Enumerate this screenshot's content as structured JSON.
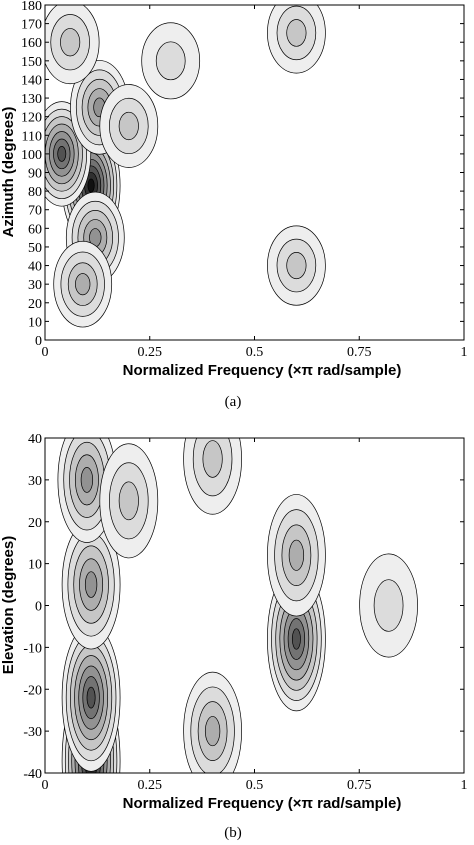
{
  "chart_data": [
    {
      "type": "heatmap",
      "subtype": "filled-contour",
      "panel_label": "(a)",
      "xlabel": "Normalized Frequency (×π rad/sample)",
      "ylabel": "Azimuth (degrees)",
      "xlim": [
        0,
        1
      ],
      "ylim": [
        0,
        180
      ],
      "xticks": [
        "0",
        "0.25",
        "0.5",
        "0.75",
        "1"
      ],
      "yticks": [
        "0",
        "10",
        "20",
        "30",
        "40",
        "50",
        "60",
        "70",
        "80",
        "90",
        "100",
        "110",
        "120",
        "130",
        "140",
        "150",
        "160",
        "170",
        "180"
      ],
      "colormap": "grayscale (white = low, black = high)",
      "grid": false,
      "peaks": [
        {
          "x": 0.11,
          "y": 83,
          "level": 1.0
        },
        {
          "x": 0.04,
          "y": 100,
          "level": 0.75
        },
        {
          "x": 0.13,
          "y": 125,
          "level": 0.55
        },
        {
          "x": 0.12,
          "y": 55,
          "level": 0.5
        },
        {
          "x": 0.09,
          "y": 30,
          "level": 0.4
        },
        {
          "x": 0.06,
          "y": 160,
          "level": 0.35
        },
        {
          "x": 0.2,
          "y": 115,
          "level": 0.35
        },
        {
          "x": 0.6,
          "y": 165,
          "level": 0.3
        },
        {
          "x": 0.6,
          "y": 40,
          "level": 0.28
        },
        {
          "x": 0.3,
          "y": 150,
          "level": 0.22
        }
      ]
    },
    {
      "type": "heatmap",
      "subtype": "filled-contour",
      "panel_label": "(b)",
      "xlabel": "Normalized Frequency (×π rad/sample)",
      "ylabel": "Elevation (degrees)",
      "xlim": [
        0,
        1
      ],
      "ylim": [
        -40,
        40
      ],
      "xticks": [
        "0",
        "0.25",
        "0.5",
        "0.75",
        "1"
      ],
      "yticks": [
        "-40",
        "-30",
        "-20",
        "-10",
        "0",
        "10",
        "20",
        "30",
        "40"
      ],
      "colormap": "grayscale (white = low, black = high)",
      "grid": false,
      "peaks": [
        {
          "x": 0.11,
          "y": -37,
          "level": 1.0
        },
        {
          "x": 0.11,
          "y": -22,
          "level": 0.8
        },
        {
          "x": 0.11,
          "y": 5,
          "level": 0.55
        },
        {
          "x": 0.1,
          "y": 30,
          "level": 0.5
        },
        {
          "x": 0.6,
          "y": -8,
          "level": 0.75
        },
        {
          "x": 0.6,
          "y": 12,
          "level": 0.45
        },
        {
          "x": 0.4,
          "y": -30,
          "level": 0.4
        },
        {
          "x": 0.2,
          "y": 25,
          "level": 0.35
        },
        {
          "x": 0.4,
          "y": 35,
          "level": 0.3
        },
        {
          "x": 0.82,
          "y": 0,
          "level": 0.2
        }
      ]
    }
  ]
}
